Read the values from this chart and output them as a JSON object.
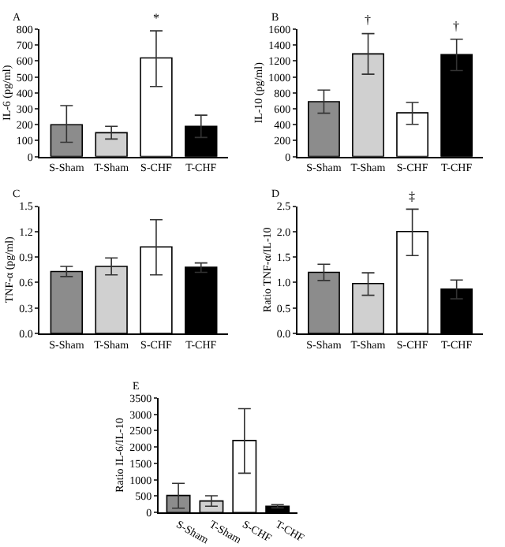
{
  "chart_data": [
    {
      "type": "bar",
      "title": "A",
      "ylabel": "IL-6 (pg/ml)",
      "categories": [
        "S-Sham",
        "T-Sham",
        "S-CHF",
        "T-CHF"
      ],
      "values": [
        200,
        150,
        620,
        190
      ],
      "colors": [
        "#8c8c8c",
        "#d0d0d0",
        "#ffffff",
        "#000000"
      ],
      "errors": [
        [
          90,
          320
        ],
        [
          110,
          190
        ],
        [
          440,
          790
        ],
        [
          120,
          260
        ]
      ],
      "ylim": [
        0,
        800
      ],
      "yticks": [
        0,
        100,
        200,
        300,
        400,
        500,
        600,
        700,
        800
      ],
      "annotations": [
        {
          "text": "*",
          "x": "S-CHF",
          "y": 790
        }
      ]
    },
    {
      "type": "bar",
      "title": "B",
      "ylabel": "IL-10 (pg/ml)",
      "categories": [
        "S-Sham",
        "T-Sham",
        "S-CHF",
        "T-CHF"
      ],
      "values": [
        690,
        1290,
        550,
        1280
      ],
      "colors": [
        "#8c8c8c",
        "#d0d0d0",
        "#ffffff",
        "#000000"
      ],
      "errors": [
        [
          545,
          835
        ],
        [
          1035,
          1545
        ],
        [
          405,
          680
        ],
        [
          1080,
          1475
        ]
      ],
      "ylim": [
        0,
        1600
      ],
      "yticks": [
        0,
        200,
        400,
        600,
        800,
        1000,
        1200,
        1400,
        1600
      ],
      "annotations": [
        {
          "text": "†",
          "x": "T-Sham",
          "y": 1545
        },
        {
          "text": "†",
          "x": "T-CHF",
          "y": 1475
        }
      ]
    },
    {
      "type": "bar",
      "title": "C",
      "ylabel": "TNF-α (pg/ml)",
      "categories": [
        "S-Sham",
        "T-Sham",
        "S-CHF",
        "T-CHF"
      ],
      "values": [
        0.73,
        0.79,
        1.02,
        0.78
      ],
      "colors": [
        "#8c8c8c",
        "#d0d0d0",
        "#ffffff",
        "#000000"
      ],
      "errors": [
        [
          0.67,
          0.79
        ],
        [
          0.69,
          0.89
        ],
        [
          0.69,
          1.34
        ],
        [
          0.72,
          0.83
        ]
      ],
      "ylim": [
        0,
        1.5
      ],
      "yticks": [
        {
          "value": 0,
          "label": "0.0"
        },
        {
          "value": 0.3,
          "label": "0.3"
        },
        {
          "value": 0.6,
          "label": "0.6"
        },
        {
          "value": 0.9,
          "label": "0.9"
        },
        {
          "value": 1.2,
          "label": "1.2"
        },
        {
          "value": 1.5,
          "label": "1.5"
        }
      ]
    },
    {
      "type": "bar",
      "title": "D",
      "ylabel": "Ratio TNF-α/IL-10",
      "categories": [
        "S-Sham",
        "T-Sham",
        "S-CHF",
        "T-CHF"
      ],
      "values": [
        1.2,
        0.98,
        2.0,
        0.87
      ],
      "colors": [
        "#8c8c8c",
        "#d0d0d0",
        "#ffffff",
        "#000000"
      ],
      "errors": [
        [
          1.04,
          1.36
        ],
        [
          0.75,
          1.19
        ],
        [
          1.53,
          2.44
        ],
        [
          0.68,
          1.05
        ]
      ],
      "ylim": [
        0,
        2.5
      ],
      "yticks": [
        {
          "value": 0,
          "label": "0.0"
        },
        {
          "value": 0.5,
          "label": "0.5"
        },
        {
          "value": 1,
          "label": "1.0"
        },
        {
          "value": 1.5,
          "label": "1.5"
        },
        {
          "value": 2,
          "label": "2.0"
        },
        {
          "value": 2.5,
          "label": "2.5"
        }
      ],
      "annotations": [
        {
          "text": "‡",
          "x": "S-CHF",
          "y": 2.44
        }
      ]
    },
    {
      "type": "bar",
      "title": "E",
      "ylabel": "Ratio IL-6/IL-10",
      "categories": [
        "S-Sham",
        "T-Sham",
        "S-CHF",
        "T-CHF"
      ],
      "values": [
        520,
        350,
        2200,
        190
      ],
      "colors": [
        "#8c8c8c",
        "#d0d0d0",
        "#ffffff",
        "#000000"
      ],
      "errors": [
        [
          130,
          890
        ],
        [
          190,
          510
        ],
        [
          1200,
          3170
        ],
        [
          140,
          240
        ]
      ],
      "ylim": [
        0,
        3500
      ],
      "yticks": [
        0,
        500,
        1000,
        1500,
        2000,
        2500,
        3000,
        3500
      ]
    }
  ]
}
